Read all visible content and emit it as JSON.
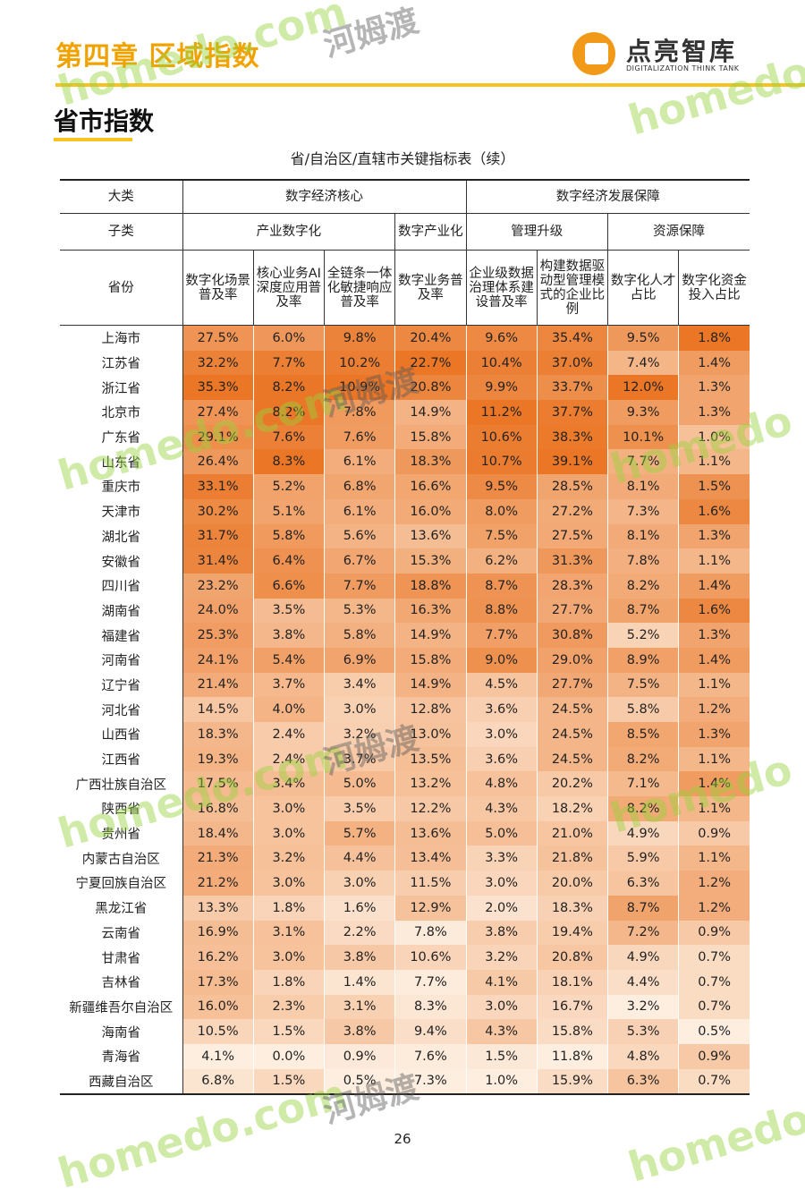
{
  "header": {
    "chapter": "第四章  区域指数",
    "logo": "点亮智库",
    "logo_sub": "DIGITALIZATION THINK TANK"
  },
  "section": "省市指数",
  "watermark": {
    "site": "homedo.com",
    "name": "河姆渡",
    "brand": "homedo"
  },
  "table": {
    "title": "省/自治区/直辖市关键指标表（续）",
    "header_rows": [
      [
        {
          "text": "大类",
          "span": 1
        },
        {
          "text": "数字经济核心",
          "span": 4
        },
        {
          "text": "数字经济发展保障",
          "span": 4
        }
      ],
      [
        {
          "text": "子类",
          "span": 1
        },
        {
          "text": "产业数字化",
          "span": 3
        },
        {
          "text": "数字产业化",
          "span": 1
        },
        {
          "text": "管理升级",
          "span": 2
        },
        {
          "text": "资源保障",
          "span": 2
        }
      ],
      [
        {
          "text": "省份",
          "span": 1
        },
        {
          "text": "数字化场景普及率",
          "span": 1
        },
        {
          "text": "核心业务AI深度应用普及率",
          "span": 1
        },
        {
          "text": "全链条一体化敏捷响应普及率",
          "span": 1
        },
        {
          "text": "数字业务普及率",
          "span": 1
        },
        {
          "text": "企业级数据治理体系建设普及率",
          "span": 1
        },
        {
          "text": "构建数据驱动型管理模式的企业比例",
          "span": 1
        },
        {
          "text": "数字化人才占比",
          "span": 1
        },
        {
          "text": "数字化资金投入占比",
          "span": 1
        }
      ]
    ],
    "rows": [
      [
        "上海市",
        "27.5%",
        "6.0%",
        "9.8%",
        "20.4%",
        "9.6%",
        "35.4%",
        "9.5%",
        "1.8%"
      ],
      [
        "江苏省",
        "32.2%",
        "7.7%",
        "10.2%",
        "22.7%",
        "10.4%",
        "37.0%",
        "7.4%",
        "1.4%"
      ],
      [
        "浙江省",
        "35.3%",
        "8.2%",
        "10.9%",
        "20.8%",
        "9.9%",
        "33.7%",
        "12.0%",
        "1.3%"
      ],
      [
        "北京市",
        "27.4%",
        "8.2%",
        "7.8%",
        "14.9%",
        "11.2%",
        "37.7%",
        "9.3%",
        "1.3%"
      ],
      [
        "广东省",
        "29.1%",
        "7.6%",
        "7.6%",
        "15.8%",
        "10.6%",
        "38.3%",
        "10.1%",
        "1.0%"
      ],
      [
        "山东省",
        "26.4%",
        "8.3%",
        "6.1%",
        "18.3%",
        "10.7%",
        "39.1%",
        "7.7%",
        "1.1%"
      ],
      [
        "重庆市",
        "33.1%",
        "5.2%",
        "6.8%",
        "16.6%",
        "9.5%",
        "28.5%",
        "8.1%",
        "1.5%"
      ],
      [
        "天津市",
        "30.2%",
        "5.1%",
        "6.1%",
        "16.0%",
        "8.0%",
        "27.2%",
        "7.3%",
        "1.6%"
      ],
      [
        "湖北省",
        "31.7%",
        "5.8%",
        "5.6%",
        "13.6%",
        "7.5%",
        "27.5%",
        "8.1%",
        "1.3%"
      ],
      [
        "安徽省",
        "31.4%",
        "6.4%",
        "6.7%",
        "15.3%",
        "6.2%",
        "31.3%",
        "7.8%",
        "1.1%"
      ],
      [
        "四川省",
        "23.2%",
        "6.6%",
        "7.7%",
        "18.8%",
        "8.7%",
        "28.3%",
        "8.2%",
        "1.4%"
      ],
      [
        "湖南省",
        "24.0%",
        "3.5%",
        "5.3%",
        "16.3%",
        "8.8%",
        "27.7%",
        "8.7%",
        "1.6%"
      ],
      [
        "福建省",
        "25.3%",
        "3.8%",
        "5.8%",
        "14.9%",
        "7.7%",
        "30.8%",
        "5.2%",
        "1.3%"
      ],
      [
        "河南省",
        "24.1%",
        "5.4%",
        "6.9%",
        "15.8%",
        "9.0%",
        "29.0%",
        "8.9%",
        "1.4%"
      ],
      [
        "辽宁省",
        "21.4%",
        "3.7%",
        "3.4%",
        "14.9%",
        "4.5%",
        "27.7%",
        "7.5%",
        "1.1%"
      ],
      [
        "河北省",
        "14.5%",
        "4.0%",
        "3.0%",
        "12.8%",
        "3.6%",
        "24.5%",
        "5.8%",
        "1.2%"
      ],
      [
        "山西省",
        "18.3%",
        "2.4%",
        "3.2%",
        "13.0%",
        "3.0%",
        "24.5%",
        "8.5%",
        "1.3%"
      ],
      [
        "江西省",
        "19.3%",
        "2.4%",
        "3.7%",
        "13.5%",
        "3.6%",
        "24.5%",
        "8.2%",
        "1.1%"
      ],
      [
        "广西壮族自治区",
        "17.5%",
        "3.4%",
        "5.0%",
        "13.2%",
        "4.8%",
        "20.2%",
        "7.1%",
        "1.4%"
      ],
      [
        "陕西省",
        "16.8%",
        "3.0%",
        "3.5%",
        "12.2%",
        "4.3%",
        "18.2%",
        "8.2%",
        "1.1%"
      ],
      [
        "贵州省",
        "18.4%",
        "3.0%",
        "5.7%",
        "13.6%",
        "5.0%",
        "21.0%",
        "4.9%",
        "0.9%"
      ],
      [
        "内蒙古自治区",
        "21.3%",
        "3.2%",
        "4.4%",
        "13.4%",
        "3.3%",
        "21.8%",
        "5.9%",
        "1.1%"
      ],
      [
        "宁夏回族自治区",
        "21.2%",
        "3.0%",
        "3.0%",
        "11.5%",
        "3.0%",
        "20.0%",
        "6.3%",
        "1.2%"
      ],
      [
        "黑龙江省",
        "13.3%",
        "1.8%",
        "1.6%",
        "12.9%",
        "2.0%",
        "18.3%",
        "8.7%",
        "1.2%"
      ],
      [
        "云南省",
        "16.9%",
        "3.1%",
        "2.2%",
        "7.8%",
        "3.8%",
        "19.4%",
        "7.2%",
        "0.9%"
      ],
      [
        "甘肃省",
        "16.2%",
        "3.0%",
        "3.8%",
        "10.6%",
        "3.2%",
        "20.8%",
        "4.9%",
        "0.7%"
      ],
      [
        "吉林省",
        "17.3%",
        "1.8%",
        "1.4%",
        "7.7%",
        "4.1%",
        "18.1%",
        "4.4%",
        "0.7%"
      ],
      [
        "新疆维吾尔自治区",
        "16.0%",
        "2.3%",
        "3.1%",
        "8.3%",
        "3.0%",
        "16.7%",
        "3.2%",
        "0.7%"
      ],
      [
        "海南省",
        "10.5%",
        "1.5%",
        "3.8%",
        "9.4%",
        "4.3%",
        "15.8%",
        "5.3%",
        "0.5%"
      ],
      [
        "青海省",
        "4.1%",
        "0.0%",
        "0.9%",
        "7.6%",
        "1.5%",
        "11.8%",
        "4.8%",
        "0.9%"
      ],
      [
        "西藏自治区",
        "6.8%",
        "1.5%",
        "0.5%",
        "7.3%",
        "1.0%",
        "15.9%",
        "6.3%",
        "0.7%"
      ]
    ]
  },
  "page_number": "26"
}
